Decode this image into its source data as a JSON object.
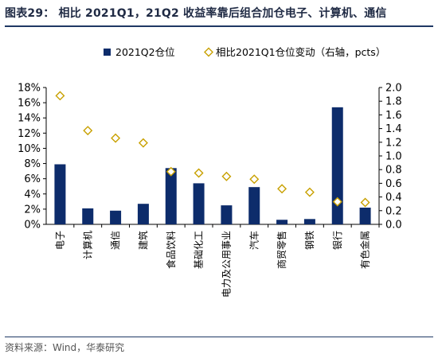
{
  "title": "图表29：  相比 2021Q1，21Q2 收益率靠后组合加仓电子、计算机、通信",
  "source": "资料来源：Wind，华泰研究",
  "colors": {
    "bar": "#0d2c6b",
    "marker": "#c8a000",
    "title_rule": "#1f3864"
  },
  "chart_data": {
    "type": "bar",
    "categories": [
      "电子",
      "计算机",
      "通信",
      "建筑",
      "食品饮料",
      "基础化工",
      "电力及公用事业",
      "汽车",
      "商贸零售",
      "钢铁",
      "银行",
      "有色金属"
    ],
    "series": [
      {
        "name": "2021Q2仓位",
        "axis": "left",
        "kind": "bar",
        "values": [
          7.9,
          2.1,
          1.8,
          2.7,
          7.4,
          5.4,
          2.5,
          4.9,
          0.6,
          0.7,
          15.4,
          2.2
        ]
      },
      {
        "name": "相比2021Q1仓位变动（右轴，pcts）",
        "axis": "right",
        "kind": "marker-diamond",
        "values": [
          1.88,
          1.37,
          1.26,
          1.19,
          0.77,
          0.75,
          0.7,
          0.66,
          0.52,
          0.47,
          0.33,
          0.32
        ]
      }
    ],
    "left_axis": {
      "min": 0,
      "max": 18,
      "step": 2,
      "format": "percent"
    },
    "right_axis": {
      "min": 0,
      "max": 2.0,
      "step": 0.2,
      "format": "decimal1"
    },
    "legend": "top-center",
    "grid": false
  }
}
